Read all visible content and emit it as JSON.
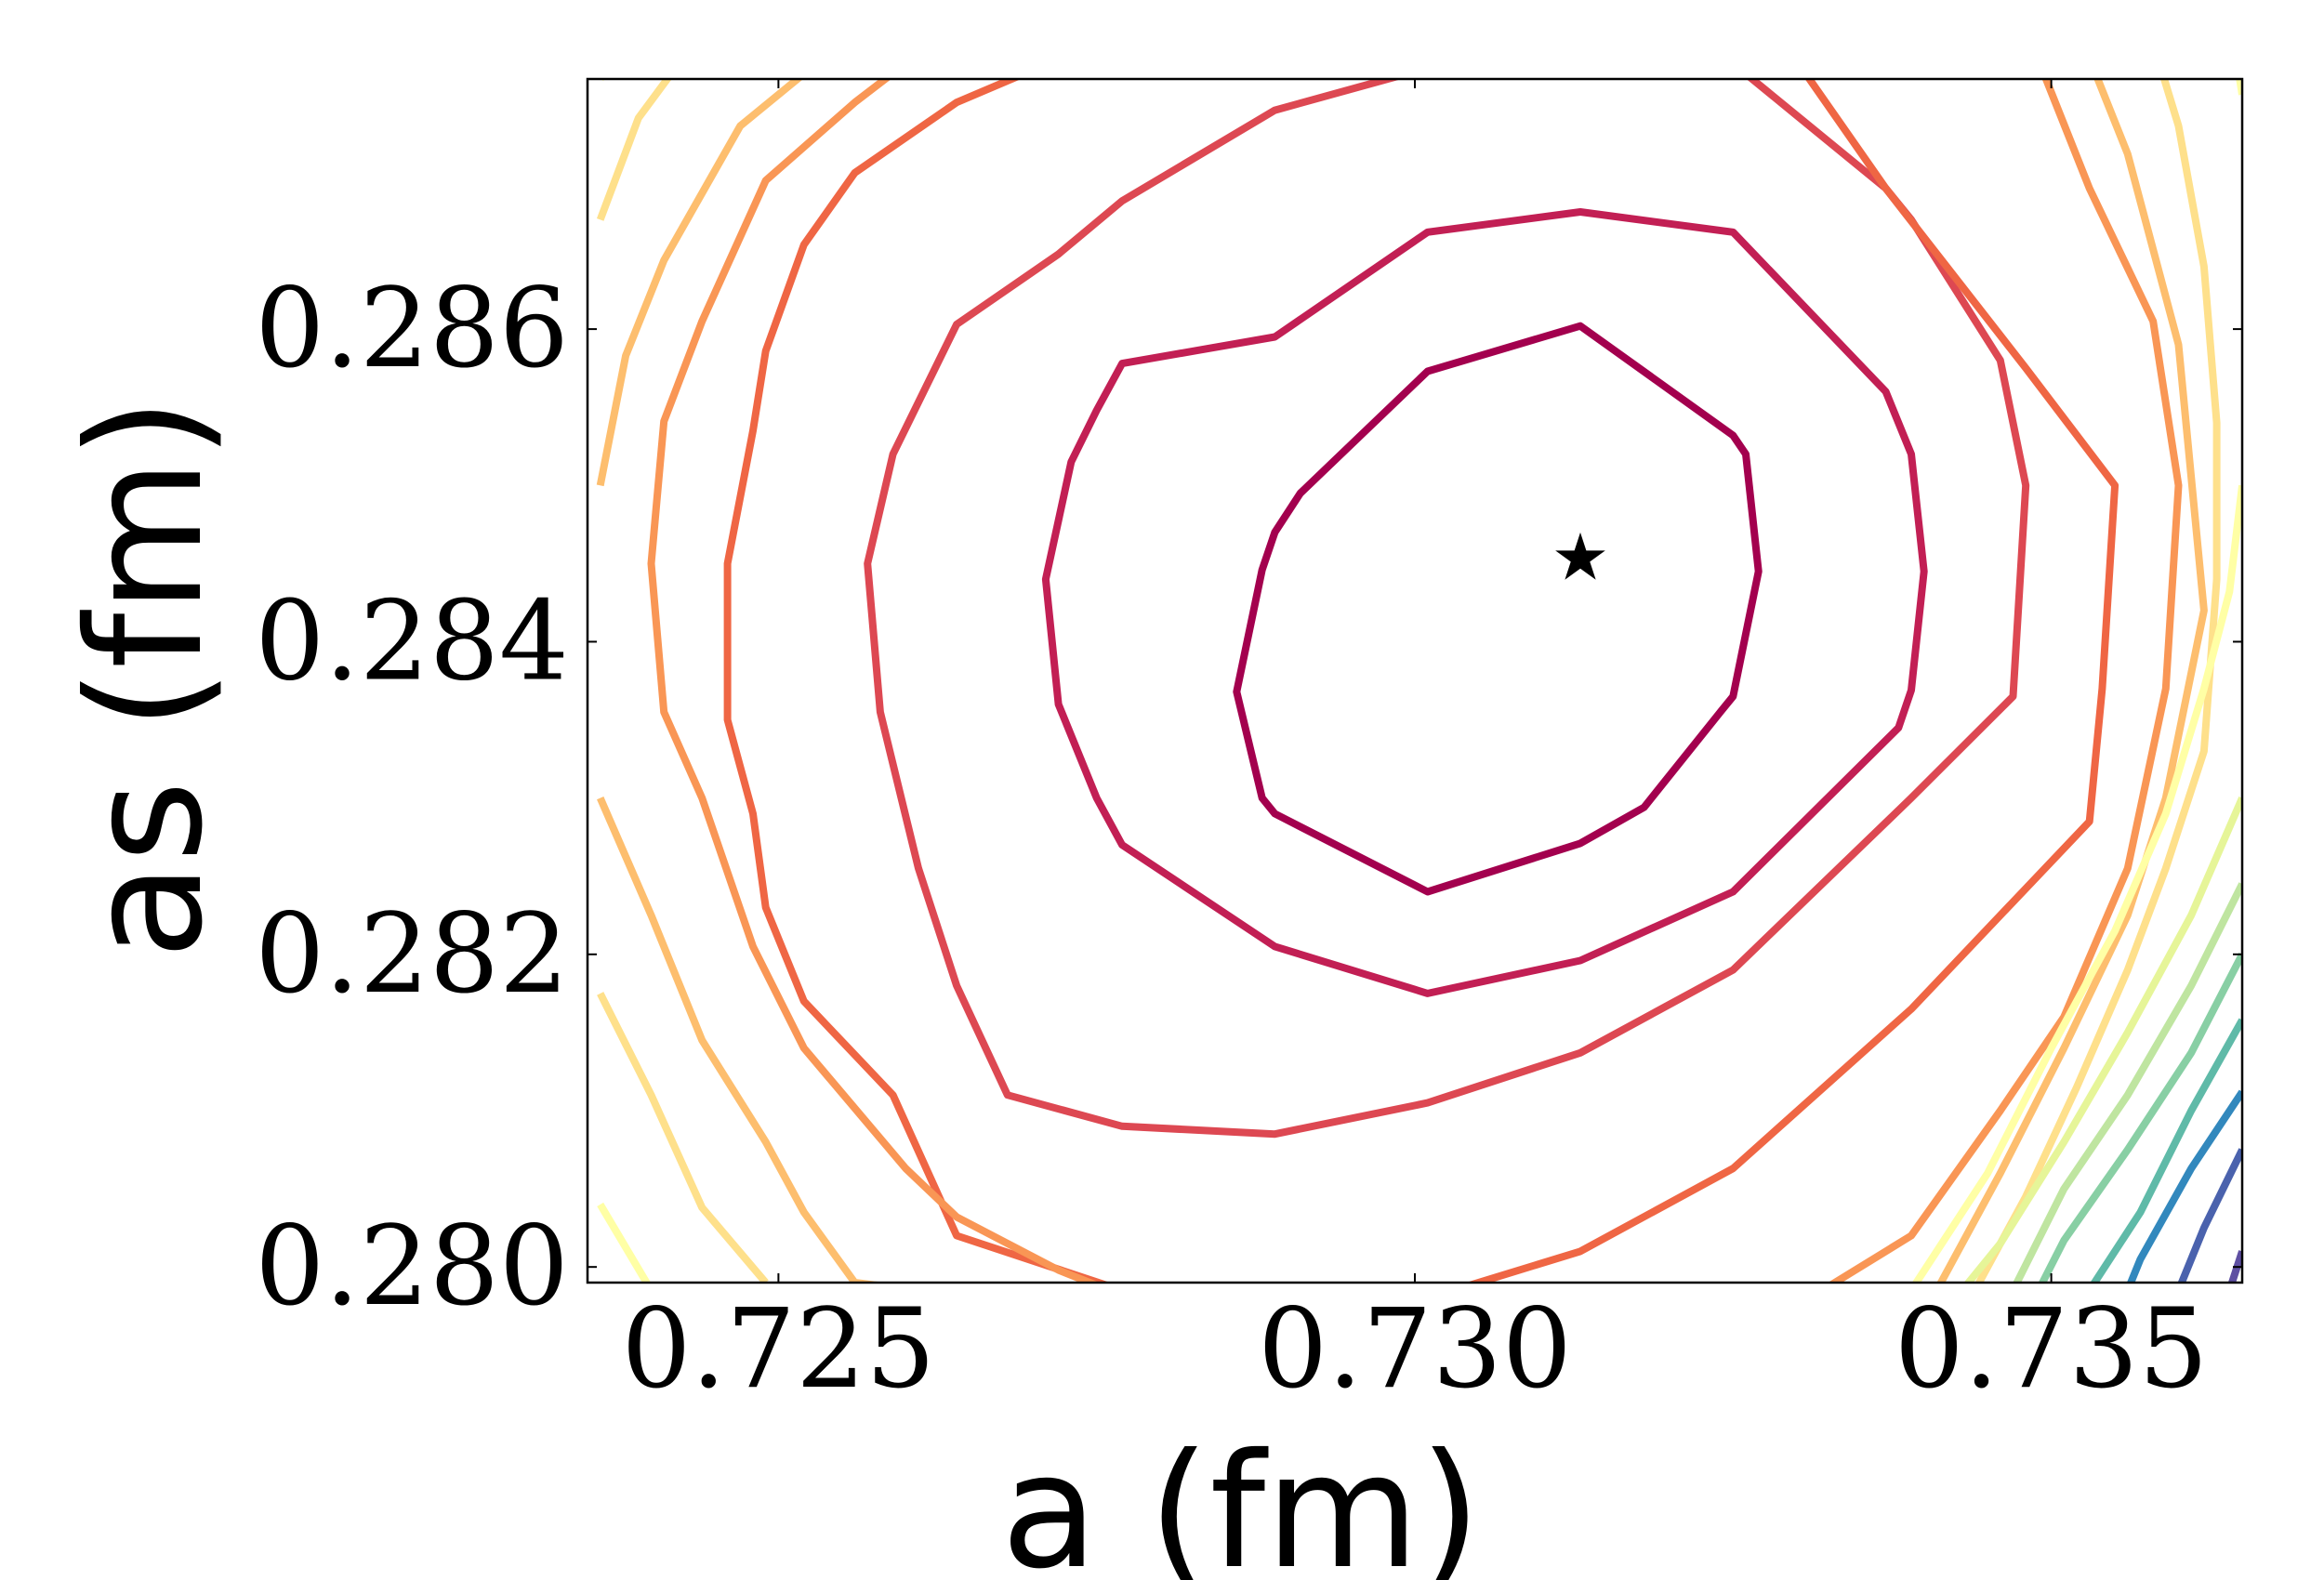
{
  "chart_data": {
    "type": "contour",
    "xlabel": "a (fm)",
    "ylabel": "as (fm)",
    "xlim": [
      0.7235,
      0.7365
    ],
    "ylim": [
      0.2799,
      0.2876
    ],
    "x_ticks": [
      "0.725",
      "0.730",
      "0.735"
    ],
    "y_ticks": [
      "0.280",
      "0.282",
      "0.284",
      "0.286"
    ],
    "x_tick_values": [
      0.725,
      0.73,
      0.735
    ],
    "y_tick_values": [
      0.28,
      0.282,
      0.284,
      0.286
    ],
    "grid": false,
    "colormap": "Spectral",
    "minimum": {
      "x": 0.7313,
      "y": 0.28453,
      "marker": "star"
    },
    "closed_contours": [
      {
        "color": "#a3004e",
        "points": [
          [
            0.7301,
            0.28573
          ],
          [
            0.7313,
            0.28602
          ],
          [
            0.7325,
            0.28532
          ],
          [
            0.7326,
            0.2852
          ],
          [
            0.7327,
            0.28445
          ],
          [
            0.7325,
            0.28365
          ],
          [
            0.7324,
            0.28355
          ],
          [
            0.7318,
            0.28294
          ],
          [
            0.7313,
            0.28271
          ],
          [
            0.7301,
            0.2824
          ],
          [
            0.7289,
            0.2829
          ],
          [
            0.7288,
            0.283
          ],
          [
            0.7286,
            0.28368
          ],
          [
            0.7288,
            0.28446
          ],
          [
            0.7289,
            0.2847
          ],
          [
            0.7291,
            0.28495
          ]
        ]
      },
      {
        "color": "#c21f54",
        "points": [
          [
            0.7289,
            0.28595
          ],
          [
            0.7301,
            0.28662
          ],
          [
            0.7313,
            0.28675
          ],
          [
            0.7325,
            0.28662
          ],
          [
            0.7337,
            0.2856
          ],
          [
            0.7339,
            0.2852
          ],
          [
            0.734,
            0.28445
          ],
          [
            0.7339,
            0.28369
          ],
          [
            0.7338,
            0.28345
          ],
          [
            0.7325,
            0.2824
          ],
          [
            0.7313,
            0.28196
          ],
          [
            0.7301,
            0.28175
          ],
          [
            0.7289,
            0.28205
          ],
          [
            0.7277,
            0.2827
          ],
          [
            0.7275,
            0.283
          ],
          [
            0.7272,
            0.2836
          ],
          [
            0.7271,
            0.2844
          ],
          [
            0.7273,
            0.28515
          ],
          [
            0.7275,
            0.28548
          ],
          [
            0.7277,
            0.28578
          ]
        ]
      },
      {
        "color": "#dd4852",
        "points": [
          [
            0.7301,
            0.28767
          ],
          [
            0.7313,
            0.28775
          ],
          [
            0.7325,
            0.2877
          ],
          [
            0.7337,
            0.2869
          ],
          [
            0.7339,
            0.2867
          ],
          [
            0.7346,
            0.2858
          ],
          [
            0.7348,
            0.285
          ],
          [
            0.7347,
            0.28365
          ],
          [
            0.7339,
            0.283
          ],
          [
            0.7325,
            0.2819
          ],
          [
            0.7313,
            0.28137
          ],
          [
            0.7301,
            0.28105
          ],
          [
            0.7289,
            0.28085
          ],
          [
            0.7277,
            0.2809
          ],
          [
            0.7268,
            0.2811
          ],
          [
            0.7264,
            0.2818
          ],
          [
            0.7261,
            0.28255
          ],
          [
            0.7258,
            0.28355
          ],
          [
            0.7257,
            0.2845
          ],
          [
            0.7259,
            0.2852
          ],
          [
            0.7264,
            0.28603
          ],
          [
            0.7272,
            0.28648
          ],
          [
            0.7277,
            0.28682
          ],
          [
            0.7289,
            0.2874
          ]
        ]
      }
    ],
    "open_contours": [
      {
        "color": "#ef6644",
        "points": [
          [
            0.7301,
            0.28845
          ],
          [
            0.7313,
            0.2887
          ],
          [
            0.7325,
            0.2883
          ],
          [
            0.7337,
            0.2869
          ],
          [
            0.7348,
            0.28575
          ],
          [
            0.7355,
            0.285
          ],
          [
            0.7354,
            0.2837
          ],
          [
            0.7353,
            0.28285
          ],
          [
            0.7339,
            0.28165
          ],
          [
            0.7325,
            0.28063
          ],
          [
            0.7313,
            0.2801
          ],
          [
            0.7301,
            0.2798
          ],
          [
            0.7289,
            0.27975
          ],
          [
            0.7277,
            0.27985
          ],
          [
            0.7264,
            0.2802
          ],
          [
            0.7259,
            0.2811
          ],
          [
            0.7252,
            0.2817
          ],
          [
            0.7249,
            0.2823
          ],
          [
            0.7248,
            0.2829
          ],
          [
            0.7246,
            0.2835
          ],
          [
            0.7246,
            0.2845
          ],
          [
            0.7248,
            0.28535
          ],
          [
            0.7249,
            0.28586
          ],
          [
            0.7252,
            0.28654
          ],
          [
            0.7256,
            0.287
          ],
          [
            0.7264,
            0.28745
          ],
          [
            0.7277,
            0.2879
          ],
          [
            0.7289,
            0.2883
          ],
          [
            0.7297,
            0.2886
          ]
        ]
      },
      {
        "color": "#f99655",
        "points": [
          [
            0.7282,
            0.28855
          ],
          [
            0.7264,
            0.28795
          ],
          [
            0.7256,
            0.28745
          ],
          [
            0.7249,
            0.28695
          ],
          [
            0.7244,
            0.28605
          ],
          [
            0.7241,
            0.28541
          ],
          [
            0.724,
            0.2845
          ],
          [
            0.7241,
            0.28355
          ],
          [
            0.7244,
            0.283
          ],
          [
            0.7248,
            0.28205
          ],
          [
            0.7252,
            0.2814
          ],
          [
            0.726,
            0.28063
          ],
          [
            0.7264,
            0.28032
          ],
          [
            0.7272,
            0.27998
          ],
          [
            0.7276,
            0.27985
          ]
        ]
      },
      {
        "color": "#fdbe6e",
        "points": [
          [
            0.7268,
            0.28855
          ],
          [
            0.7256,
            0.2879
          ],
          [
            0.7247,
            0.2873
          ],
          [
            0.7241,
            0.28644
          ],
          [
            0.7238,
            0.28583
          ],
          [
            0.7236,
            0.285
          ]
        ]
      },
      {
        "color": "#fee08b",
        "points": [
          [
            0.7252,
            0.28855
          ],
          [
            0.7244,
            0.2879
          ],
          [
            0.7239,
            0.28735
          ],
          [
            0.7236,
            0.2867
          ]
        ]
      },
      {
        "color": "#ffffa5",
        "points": [
          [
            0.7243,
            0.28855
          ],
          [
            0.7236,
            0.2876
          ]
        ]
      },
      {
        "color": "#fdbe6e",
        "points": [
          [
            0.7236,
            0.283
          ],
          [
            0.724,
            0.28225
          ],
          [
            0.7244,
            0.28145
          ],
          [
            0.7249,
            0.2808
          ],
          [
            0.7252,
            0.28035
          ],
          [
            0.7256,
            0.2799
          ],
          [
            0.7261,
            0.27985
          ]
        ]
      },
      {
        "color": "#fee08b",
        "points": [
          [
            0.7236,
            0.28175
          ],
          [
            0.724,
            0.2811
          ],
          [
            0.7244,
            0.28038
          ],
          [
            0.7249,
            0.2799
          ]
        ]
      },
      {
        "color": "#ffffa5",
        "points": [
          [
            0.7236,
            0.2804
          ],
          [
            0.724,
            0.27985
          ]
        ]
      },
      {
        "color": "#f99655",
        "points": [
          [
            0.7342,
            0.28855
          ],
          [
            0.7349,
            0.28772
          ],
          [
            0.7353,
            0.2869
          ],
          [
            0.7358,
            0.28605
          ],
          [
            0.736,
            0.285
          ],
          [
            0.7359,
            0.2837
          ],
          [
            0.7356,
            0.28255
          ],
          [
            0.7351,
            0.2816
          ],
          [
            0.7346,
            0.281
          ],
          [
            0.7339,
            0.2802
          ],
          [
            0.7332,
            0.27985
          ]
        ]
      },
      {
        "color": "#fdbe6e",
        "points": [
          [
            0.7349,
            0.28855
          ],
          [
            0.7356,
            0.28712
          ],
          [
            0.736,
            0.2859
          ],
          [
            0.7361,
            0.28505
          ],
          [
            0.7362,
            0.2842
          ],
          [
            0.7359,
            0.283
          ],
          [
            0.7356,
            0.28225
          ],
          [
            0.7351,
            0.2814
          ],
          [
            0.7346,
            0.2806
          ],
          [
            0.7341,
            0.27985
          ]
        ]
      },
      {
        "color": "#fee08b",
        "points": [
          [
            0.7355,
            0.28855
          ],
          [
            0.7357,
            0.2881
          ],
          [
            0.736,
            0.2873
          ],
          [
            0.7362,
            0.2864
          ],
          [
            0.7363,
            0.2854
          ],
          [
            0.7363,
            0.2844
          ],
          [
            0.7362,
            0.2833
          ],
          [
            0.7359,
            0.28255
          ],
          [
            0.7356,
            0.2819
          ],
          [
            0.7352,
            0.28115
          ],
          [
            0.7348,
            0.28045
          ],
          [
            0.7344,
            0.27985
          ]
        ]
      },
      {
        "color": "#ffffa5",
        "points": [
          [
            0.7362,
            0.28855
          ],
          [
            0.7364,
            0.288
          ],
          [
            0.7365,
            0.2875
          ]
        ]
      },
      {
        "color": "#ffffa5",
        "points": [
          [
            0.7365,
            0.285
          ],
          [
            0.7364,
            0.28432
          ],
          [
            0.7362,
            0.2837
          ],
          [
            0.7359,
            0.2829
          ],
          [
            0.7355,
            0.28215
          ],
          [
            0.735,
            0.2814
          ],
          [
            0.7345,
            0.2806
          ],
          [
            0.7339,
            0.27985
          ]
        ]
      },
      {
        "color": "#e6f598",
        "points": [
          [
            0.7365,
            0.283
          ],
          [
            0.7361,
            0.28225
          ],
          [
            0.7356,
            0.2815
          ],
          [
            0.7351,
            0.2808
          ],
          [
            0.7346,
            0.28015
          ],
          [
            0.7343,
            0.27985
          ]
        ]
      },
      {
        "color": "#bfe5a0",
        "points": [
          [
            0.7365,
            0.28245
          ],
          [
            0.7361,
            0.2818
          ],
          [
            0.7356,
            0.2811
          ],
          [
            0.7351,
            0.2805
          ],
          [
            0.7347,
            0.27985
          ]
        ]
      },
      {
        "color": "#88cfa4",
        "points": [
          [
            0.7365,
            0.282
          ],
          [
            0.7361,
            0.28137
          ],
          [
            0.7356,
            0.28075
          ],
          [
            0.7351,
            0.28017
          ],
          [
            0.7349,
            0.27985
          ]
        ]
      },
      {
        "color": "#5fbaa8",
        "points": [
          [
            0.7365,
            0.28158
          ],
          [
            0.7361,
            0.281
          ],
          [
            0.7357,
            0.28035
          ],
          [
            0.7353,
            0.27985
          ]
        ]
      },
      {
        "color": "#3288bd",
        "points": [
          [
            0.7365,
            0.28112
          ],
          [
            0.7361,
            0.28063
          ],
          [
            0.7357,
            0.28005
          ],
          [
            0.7356,
            0.27985
          ]
        ]
      },
      {
        "color": "#4a62ad",
        "points": [
          [
            0.7365,
            0.28075
          ],
          [
            0.7362,
            0.28025
          ],
          [
            0.736,
            0.27985
          ]
        ]
      },
      {
        "color": "#5e4fa2",
        "points": [
          [
            0.7365,
            0.2801
          ],
          [
            0.7364,
            0.27985
          ]
        ]
      }
    ]
  }
}
